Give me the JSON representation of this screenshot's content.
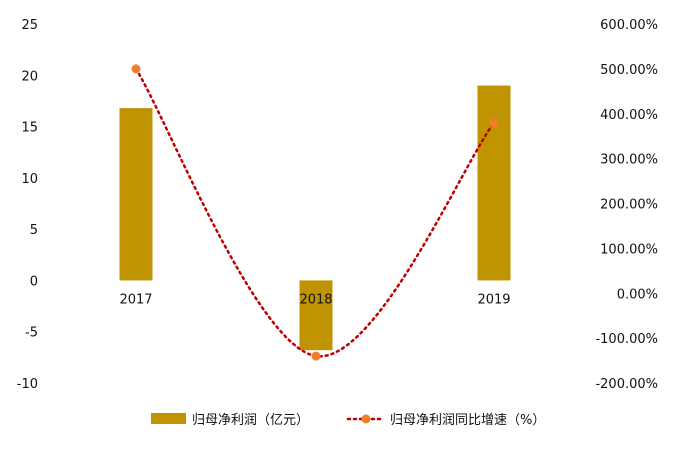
{
  "chart_data": {
    "type": "bar+line",
    "categories": [
      "2017",
      "2018",
      "2019"
    ],
    "series": [
      {
        "name": "归母净利润（亿元）",
        "type": "bar",
        "axis": "left",
        "values": [
          16.8,
          -6.8,
          19.0
        ]
      },
      {
        "name": "归母净利润同比增速（%）",
        "type": "line",
        "axis": "right",
        "values": [
          500.0,
          -140.0,
          380.0
        ]
      }
    ],
    "y_left": {
      "range": [
        -10,
        25
      ],
      "ticks": [
        "25",
        "20",
        "15",
        "10",
        "5",
        "0",
        "-5",
        "-10"
      ]
    },
    "y_right": {
      "range": [
        -200,
        600
      ],
      "ticks": [
        "600.00%",
        "500.00%",
        "400.00%",
        "300.00%",
        "200.00%",
        "100.00%",
        "0.00%",
        "-100.00%",
        "-200.00%"
      ]
    },
    "legend_position": "bottom",
    "grid": false,
    "colors": {
      "bar": "#C09400",
      "line": "#C00000",
      "marker": "#F07F2A"
    }
  }
}
